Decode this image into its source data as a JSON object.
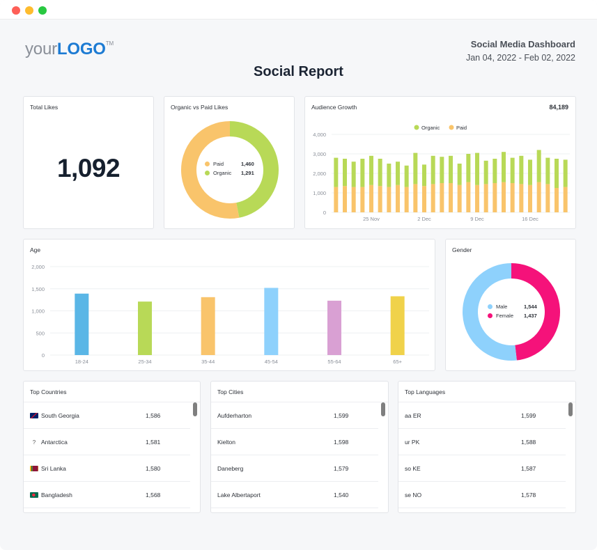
{
  "window": {
    "controls": [
      "close",
      "minimize",
      "maximize"
    ]
  },
  "header": {
    "logo_text_a": "your",
    "logo_text_b": "LOGO",
    "logo_tm": "TM",
    "dashboard_title": "Social Media Dashboard",
    "date_range": "Jan 04, 2022 - Feb 02, 2022",
    "report_title": "Social Report"
  },
  "total_likes": {
    "title": "Total Likes",
    "value": "1,092"
  },
  "organic_vs_paid": {
    "title": "Organic vs Paid Likes",
    "items": [
      {
        "label": "Paid",
        "value": "1,460",
        "color": "#f9c46b"
      },
      {
        "label": "Organic",
        "value": "1,291",
        "color": "#b8d957"
      }
    ],
    "chart_data": {
      "type": "pie",
      "categories": [
        "Paid",
        "Organic"
      ],
      "values": [
        1460,
        1291
      ],
      "colors": [
        "#f9c46b",
        "#b8d957"
      ]
    }
  },
  "audience_growth": {
    "title": "Audience Growth",
    "total": "84,189",
    "legend": [
      {
        "label": "Organic",
        "color": "#b8d957"
      },
      {
        "label": "Paid",
        "color": "#f9c46b"
      }
    ],
    "y_ticks": [
      "4,000",
      "3,000",
      "2,000",
      "1,000",
      "0"
    ],
    "x_ticks": [
      {
        "label": "25 Nov",
        "index": 4
      },
      {
        "label": "2 Dec",
        "index": 10
      },
      {
        "label": "9 Dec",
        "index": 16
      },
      {
        "label": "16 Dec",
        "index": 22
      }
    ],
    "chart_data": {
      "type": "bar",
      "stacked": true,
      "ylim": [
        0,
        4000
      ],
      "series": [
        {
          "name": "Paid",
          "color": "#f9c46b",
          "values": [
            1300,
            1350,
            1300,
            1300,
            1400,
            1350,
            1300,
            1400,
            1300,
            1450,
            1350,
            1450,
            1500,
            1500,
            1400,
            1550,
            1400,
            1450,
            1500,
            1550,
            1500,
            1450,
            1400,
            1550,
            1450,
            1250,
            1300
          ]
        },
        {
          "name": "Organic",
          "color": "#b8d957",
          "values": [
            1500,
            1400,
            1300,
            1450,
            1500,
            1400,
            1200,
            1200,
            1100,
            1600,
            1100,
            1450,
            1350,
            1400,
            1100,
            1450,
            1650,
            1200,
            1250,
            1550,
            1300,
            1450,
            1300,
            1650,
            1350,
            1500,
            1400
          ]
        }
      ]
    }
  },
  "age": {
    "title": "Age",
    "y_ticks": [
      "2,000",
      "1,500",
      "1,000",
      "500",
      "0"
    ],
    "chart_data": {
      "type": "bar",
      "categories": [
        "18-24",
        "25-34",
        "35-44",
        "45-54",
        "55-64",
        "65+"
      ],
      "values": [
        1390,
        1210,
        1310,
        1520,
        1230,
        1330
      ],
      "colors": [
        "#5ab6e6",
        "#b8d957",
        "#f9c46b",
        "#8ed1fc",
        "#d9a0d3",
        "#f0d24a"
      ],
      "ylim": [
        0,
        2000
      ]
    }
  },
  "gender": {
    "title": "Gender",
    "items": [
      {
        "label": "Male",
        "value": "1,544",
        "color": "#8ed1fc"
      },
      {
        "label": "Female",
        "value": "1,437",
        "color": "#f5127a"
      }
    ],
    "chart_data": {
      "type": "pie",
      "categories": [
        "Male",
        "Female"
      ],
      "values": [
        1544,
        1437
      ],
      "colors": [
        "#8ed1fc",
        "#f5127a"
      ]
    }
  },
  "top_countries": {
    "title": "Top Countries",
    "rows": [
      {
        "name": "South Georgia",
        "value": "1,586",
        "flag": "south-georgia-flag-icon"
      },
      {
        "name": "Antarctica",
        "value": "1,581",
        "flag": "unknown-flag-icon"
      },
      {
        "name": "Sri Lanka",
        "value": "1,580",
        "flag": "sri-lanka-flag-icon"
      },
      {
        "name": "Bangladesh",
        "value": "1,568",
        "flag": "bangladesh-flag-icon"
      }
    ]
  },
  "top_cities": {
    "title": "Top Cities",
    "rows": [
      {
        "name": "Aufderharton",
        "value": "1,599"
      },
      {
        "name": "Kielton",
        "value": "1,598"
      },
      {
        "name": "Daneberg",
        "value": "1,579"
      },
      {
        "name": "Lake Albertaport",
        "value": "1,540"
      }
    ]
  },
  "top_languages": {
    "title": "Top Languages",
    "rows": [
      {
        "name": "aa ER",
        "value": "1,599"
      },
      {
        "name": "ur PK",
        "value": "1,588"
      },
      {
        "name": "so KE",
        "value": "1,587"
      },
      {
        "name": "se NO",
        "value": "1,578"
      }
    ]
  }
}
